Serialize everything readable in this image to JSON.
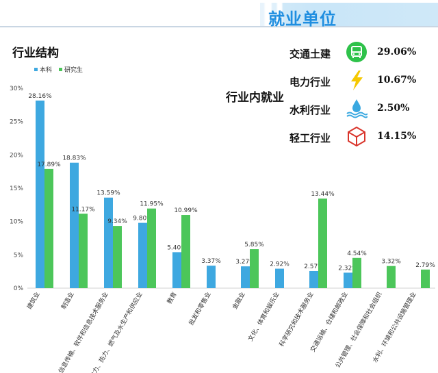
{
  "banner": {
    "title": "就业单位"
  },
  "chart_title": "行业结构",
  "inner_title": "行业内就业",
  "stats": [
    {
      "label": "交通土建",
      "value": "29.06%",
      "icon": "bus-icon",
      "color": "#2ec24a"
    },
    {
      "label": "电力行业",
      "value": "10.67%",
      "icon": "lightning-icon",
      "color": "#f5c800"
    },
    {
      "label": "水利行业",
      "value": "2.50%",
      "icon": "water-icon",
      "color": "#3aa8e0"
    },
    {
      "label": "轻工行业",
      "value": "14.15%",
      "icon": "box-icon",
      "color": "#d9342b"
    }
  ],
  "colors": {
    "undergrad": "#3ea8e0",
    "grad": "#4cc65a"
  },
  "chart_data": {
    "type": "bar",
    "title": "行业结构",
    "ylim": [
      0,
      30
    ],
    "yticks": [
      "0%",
      "5%",
      "10%",
      "15%",
      "20%",
      "25%",
      "30%"
    ],
    "legend": [
      "本科",
      "研究生"
    ],
    "legend_position": "top-left",
    "grid": false,
    "categories": [
      "建筑业",
      "制造业",
      "信息传输、软件和信息技术服务业",
      "电力、热力、燃气及水生产和供应业",
      "教育",
      "批发和零售业",
      "金融业",
      "文化、体育和娱乐业",
      "科学研究和技术服务业",
      "交通运输、仓储和邮政业",
      "公共管理、社会保障和社会组织",
      "水利、环境和公共设施管理业"
    ],
    "series": [
      {
        "name": "本科",
        "values": [
          28.16,
          18.83,
          13.59,
          9.8,
          5.4,
          3.37,
          3.27,
          2.92,
          2.57,
          2.32,
          null,
          null
        ],
        "labels": [
          "28.16%",
          "18.83%",
          "13.59%",
          "9.80%",
          "5.40%",
          "3.37%",
          "3.27%",
          "2.92%",
          "2.57%",
          "2.32%",
          "",
          ""
        ]
      },
      {
        "name": "研究生",
        "values": [
          17.89,
          11.17,
          9.34,
          11.95,
          10.99,
          null,
          5.85,
          null,
          13.44,
          4.54,
          3.32,
          2.79
        ],
        "labels": [
          "17.89%",
          "11.17%",
          "9.34%",
          "11.95%",
          "10.99%",
          "",
          "5.85%",
          "",
          "13.44%",
          "4.54%",
          "3.32%",
          "2.79%"
        ]
      }
    ]
  }
}
